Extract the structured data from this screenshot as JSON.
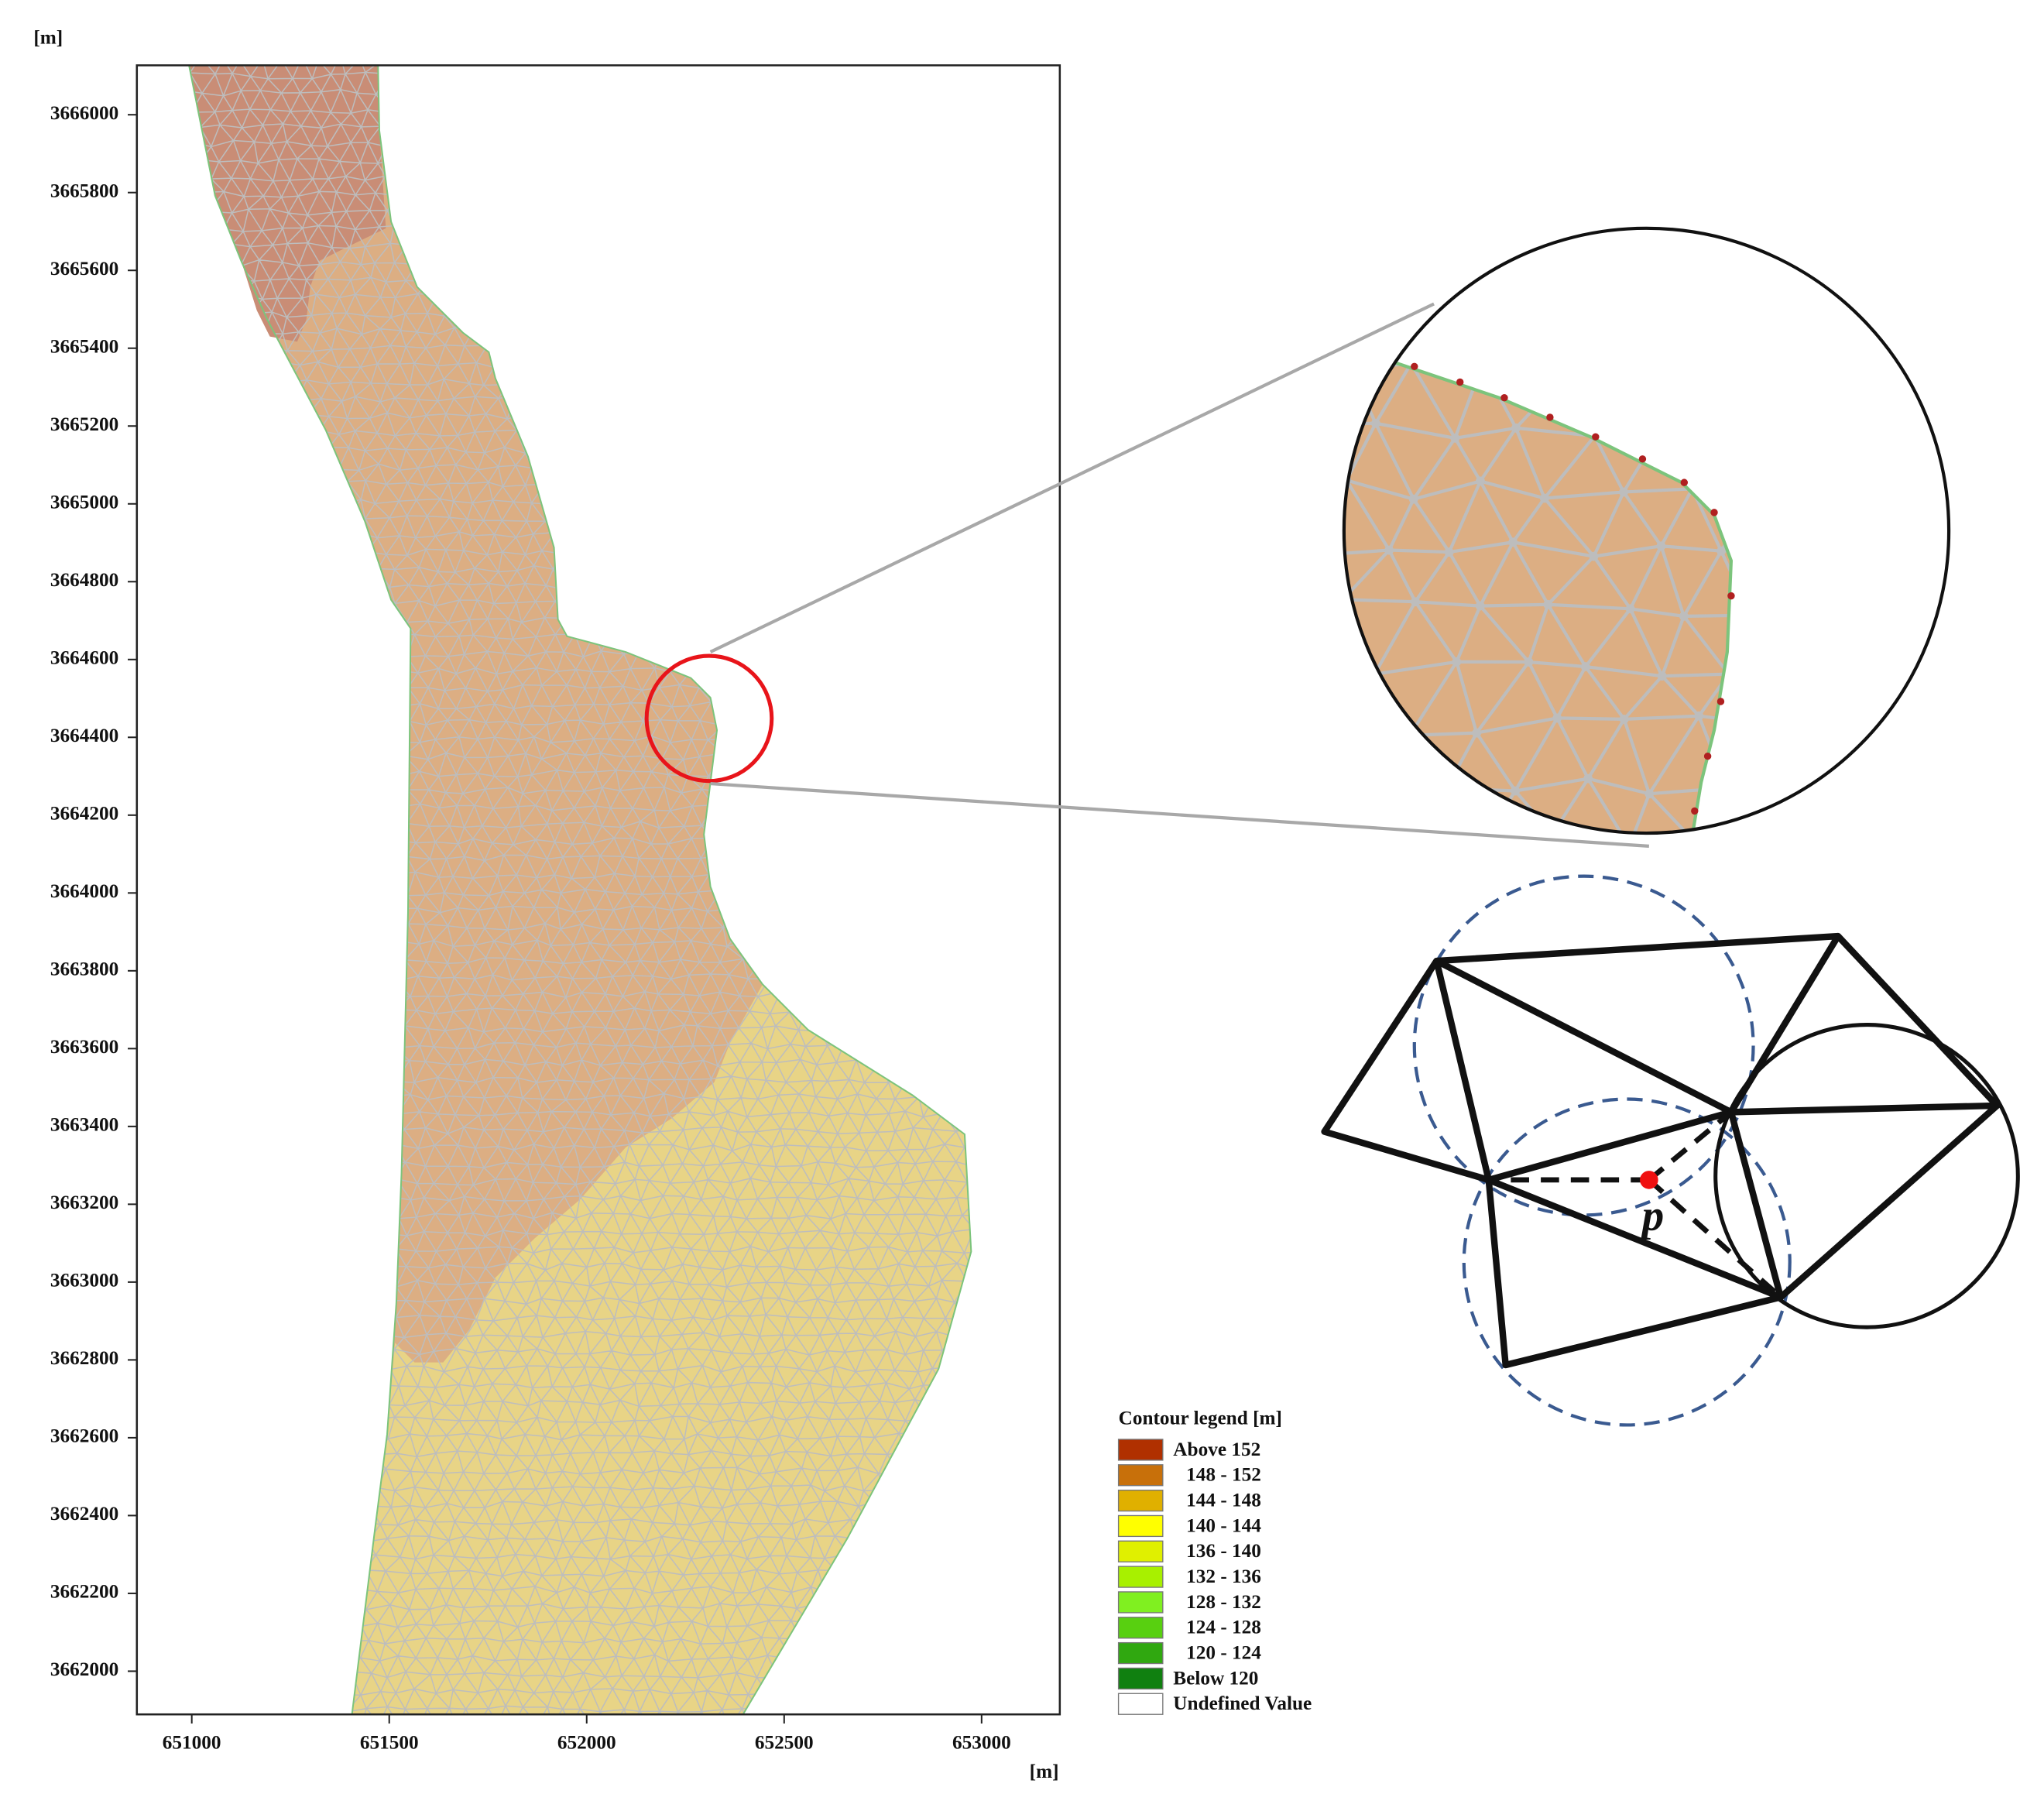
{
  "chart_data": {
    "type": "mesh",
    "x_label": "[m]",
    "y_label": "[m]",
    "xlim": [
      650861,
      653198
    ],
    "xticks": [
      651000,
      651500,
      652000,
      652500,
      653000
    ],
    "ylim": [
      3661889,
      3666127
    ],
    "yticks": [
      3662000,
      3662200,
      3662400,
      3662600,
      3662800,
      3663000,
      3663200,
      3663400,
      3663600,
      3663800,
      3664000,
      3664200,
      3664400,
      3664600,
      3664800,
      3665000,
      3665200,
      3665400,
      3665600,
      3665800,
      3666000
    ],
    "region_colors": [
      "#c98d76",
      "#dcae83",
      "#e8d486"
    ],
    "mesh_color": "#bdbdbd",
    "legend": {
      "title": "Contour legend [m]",
      "items": [
        {
          "name": "Above 152",
          "color": "#b03000"
        },
        {
          "name": "148 - 152",
          "color": "#c8700a"
        },
        {
          "name": "144 - 148",
          "color": "#e0b000"
        },
        {
          "name": "140 - 144",
          "color": "#ffff00"
        },
        {
          "name": "136 - 140",
          "color": "#e0f000"
        },
        {
          "name": "132 - 136",
          "color": "#a8f000"
        },
        {
          "name": "128 - 132",
          "color": "#80f020"
        },
        {
          "name": "124 - 128",
          "color": "#58d010"
        },
        {
          "name": "120 - 124",
          "color": "#30a810"
        },
        {
          "name": "Below 120",
          "color": "#108010"
        },
        {
          "name": "Undefined Value",
          "color": "#ffffff"
        }
      ]
    },
    "diagram": {
      "point_label": "p"
    }
  }
}
